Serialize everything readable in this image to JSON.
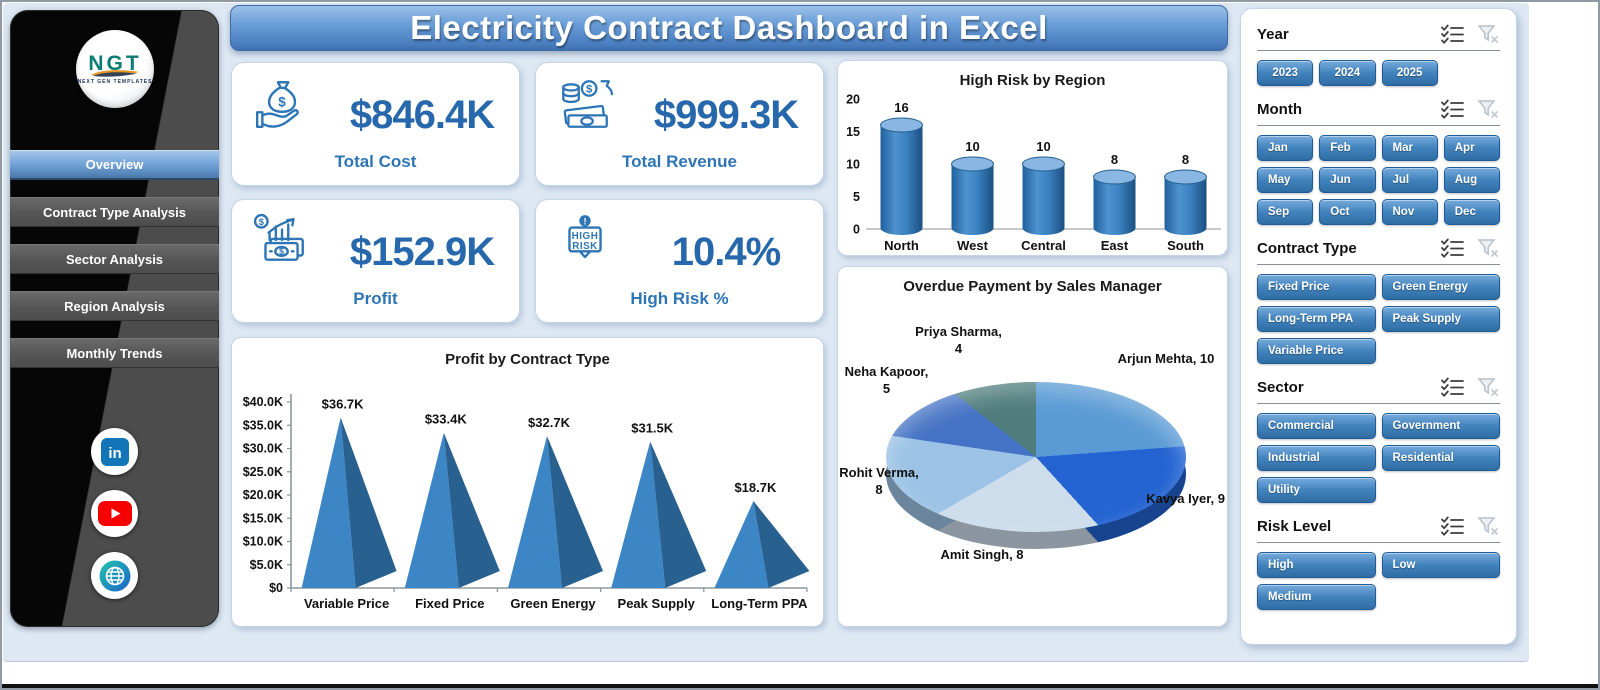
{
  "title": "Electricity Contract Dashboard in Excel",
  "colors": {
    "accent_blue": "#2e75b6",
    "canvas_bg": "#dde8f3",
    "pyramid_light": "#3d86c6",
    "pyramid_dark": "#28608f",
    "cylinder_top": "#8ab6e3",
    "slicer_btn_top": "#77abdb",
    "slicer_btn_bottom": "#2e6da4"
  },
  "sidebar": {
    "logo": {
      "text": "NGT",
      "subtext": "NEXT GEN TEMPLATES"
    },
    "items": [
      {
        "label": "Overview",
        "active": true
      },
      {
        "label": "Contract Type Analysis",
        "active": false
      },
      {
        "label": "Sector Analysis",
        "active": false
      },
      {
        "label": "Region Analysis",
        "active": false
      },
      {
        "label": "Monthly Trends",
        "active": false
      }
    ]
  },
  "kpis": [
    {
      "value": "$846.4K",
      "label": "Total Cost",
      "icon": "money-bag-hand-icon"
    },
    {
      "value": "$999.3K",
      "label": "Total Revenue",
      "icon": "coins-cash-icon"
    },
    {
      "value": "$152.9K",
      "label": "Profit",
      "icon": "profit-growth-icon"
    },
    {
      "value": "10.4%",
      "label": "High Risk %",
      "icon": "high-risk-badge-icon"
    }
  ],
  "chart_data": [
    {
      "type": "bar",
      "style": "3d-pyramid",
      "title": "Profit by Contract Type",
      "categories": [
        "Variable Price",
        "Fixed Price",
        "Green Energy",
        "Peak Supply",
        "Long-Term PPA"
      ],
      "values": [
        36700,
        33400,
        32700,
        31500,
        18700
      ],
      "value_labels": [
        "$36.7K",
        "$33.4K",
        "$32.7K",
        "$31.5K",
        "$18.7K"
      ],
      "ylabel": "",
      "xlabel": "",
      "ylim": [
        0,
        40000
      ],
      "y_tick_labels": [
        "$0",
        "$5.0K",
        "$10.0K",
        "$15.0K",
        "$20.0K",
        "$25.0K",
        "$30.0K",
        "$35.0K",
        "$40.0K"
      ],
      "grid": false,
      "legend": "none"
    },
    {
      "type": "bar",
      "style": "3d-cylinder",
      "title": "High Risk by Region",
      "categories": [
        "North",
        "West",
        "Central",
        "East",
        "South"
      ],
      "values": [
        16,
        10,
        10,
        8,
        8
      ],
      "ylabel": "",
      "xlabel": "",
      "ylim": [
        0,
        20
      ],
      "y_ticks": [
        0,
        5,
        10,
        15,
        20
      ],
      "grid": false,
      "legend": "none"
    },
    {
      "type": "pie",
      "style": "3d-pie",
      "title": "Overdue Payment by Sales Manager",
      "slices": [
        {
          "name": "Arjun Mehta",
          "value": 10,
          "label": "Arjun Mehta, 10",
          "color": "#5b9bd5"
        },
        {
          "name": "Kavya Iyer",
          "value": 9,
          "label": "Kavya Iyer, 9",
          "color": "#2364d2"
        },
        {
          "name": "Amit Singh",
          "value": 8,
          "label": "Amit Singh, 8",
          "color": "#cdddeb"
        },
        {
          "name": "Rohit Verma",
          "value": 8,
          "label": "Rohit Verma, 8",
          "color": "#9cc3e5"
        },
        {
          "name": "Neha Kapoor",
          "value": 5,
          "label": "Neha Kapoor, 5",
          "color": "#4472c4"
        },
        {
          "name": "Priya Sharma",
          "value": 4,
          "label": "Priya Sharma, 4",
          "color": "#4f7d7c"
        }
      ],
      "legend": "none"
    }
  ],
  "slicers": [
    {
      "title": "Year",
      "options": [
        "2023",
        "2024",
        "2025"
      ]
    },
    {
      "title": "Month",
      "options": [
        "Jan",
        "Feb",
        "Mar",
        "Apr",
        "May",
        "Jun",
        "Jul",
        "Aug",
        "Sep",
        "Oct",
        "Nov",
        "Dec"
      ]
    },
    {
      "title": "Contract Type",
      "options": [
        "Fixed Price",
        "Green Energy",
        "Long-Term PPA",
        "Peak Supply",
        "Variable Price"
      ]
    },
    {
      "title": "Sector",
      "options": [
        "Commercial",
        "Government",
        "Industrial",
        "Residential",
        "Utility"
      ]
    },
    {
      "title": "Risk Level",
      "options": [
        "High",
        "Low",
        "Medium"
      ]
    }
  ]
}
